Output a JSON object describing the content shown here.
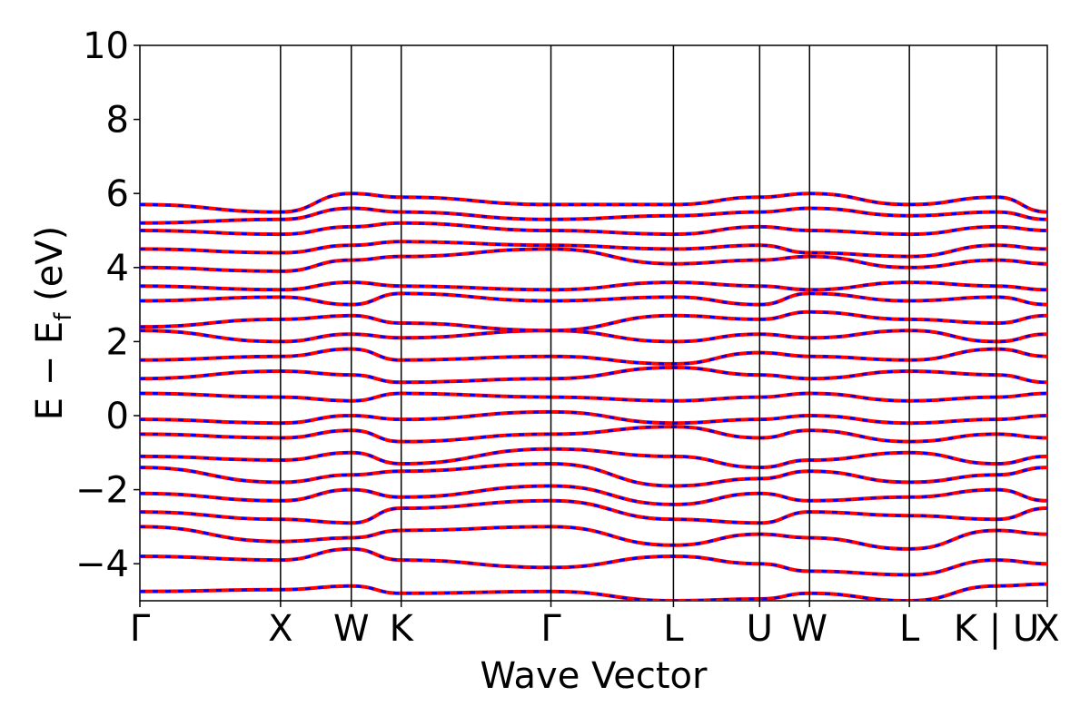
{
  "chart_data": {
    "type": "line",
    "title": "",
    "xlabel": "Wave Vector",
    "ylabel_parts": {
      "main": "E − E",
      "sub": "f",
      "unit": " (eV)"
    },
    "ylim": [
      -5,
      10
    ],
    "yticks": [
      10,
      8,
      6,
      4,
      2,
      0,
      -2,
      -4
    ],
    "ytick_labels": [
      "10",
      "8",
      "6",
      "4",
      "2",
      "0",
      "−2",
      "−4"
    ],
    "xlim": [
      0,
      1
    ],
    "kpath": [
      {
        "label": "Γ",
        "x": 0.0
      },
      {
        "label": "X",
        "x": 0.155
      },
      {
        "label": "W",
        "x": 0.233
      },
      {
        "label": "K",
        "x": 0.288
      },
      {
        "label": "Γ",
        "x": 0.453
      },
      {
        "label": "L",
        "x": 0.588
      },
      {
        "label": "U",
        "x": 0.683
      },
      {
        "label": "W",
        "x": 0.738
      },
      {
        "label": "L",
        "x": 0.848
      },
      {
        "label": "K | U",
        "x": 0.944
      },
      {
        "label": "X",
        "x": 1.0
      }
    ],
    "high_symmetry_lines": [
      0.155,
      0.233,
      0.288,
      0.453,
      0.588,
      0.683,
      0.738,
      0.848,
      0.944
    ],
    "series": [
      {
        "color": "#ff0000",
        "style": "solid"
      },
      {
        "color": "#0000ff",
        "style": "dashed"
      }
    ],
    "bands": [
      {
        "y": [
          -4.75,
          -4.7,
          -4.6,
          -4.8,
          -4.75,
          -5.0,
          -4.95,
          -4.8,
          -5.0,
          -4.6,
          -4.55
        ]
      },
      {
        "y": [
          -3.8,
          -3.9,
          -3.6,
          -3.9,
          -4.1,
          -3.8,
          -4.0,
          -4.2,
          -4.3,
          -3.9,
          -4.0
        ]
      },
      {
        "y": [
          -3.0,
          -3.4,
          -3.3,
          -3.1,
          -3.0,
          -3.5,
          -3.2,
          -3.3,
          -3.6,
          -3.1,
          -3.2
        ]
      },
      {
        "y": [
          -2.6,
          -2.8,
          -2.9,
          -2.5,
          -2.3,
          -2.8,
          -2.9,
          -2.6,
          -2.7,
          -2.8,
          -2.5
        ]
      },
      {
        "y": [
          -2.1,
          -2.3,
          -2.0,
          -2.2,
          -1.9,
          -2.4,
          -2.1,
          -2.3,
          -2.2,
          -2.0,
          -2.3
        ]
      },
      {
        "y": [
          -1.4,
          -1.8,
          -1.6,
          -1.5,
          -1.3,
          -1.9,
          -1.7,
          -1.5,
          -1.8,
          -1.6,
          -1.4
        ]
      },
      {
        "y": [
          -1.1,
          -1.2,
          -1.0,
          -1.3,
          -0.9,
          -1.1,
          -1.4,
          -1.2,
          -1.0,
          -1.3,
          -1.1
        ]
      },
      {
        "y": [
          -0.5,
          -0.6,
          -0.4,
          -0.7,
          -0.5,
          -0.3,
          -0.6,
          -0.4,
          -0.7,
          -0.5,
          -0.6
        ]
      },
      {
        "y": [
          -0.1,
          -0.2,
          0.0,
          -0.1,
          0.1,
          -0.2,
          -0.1,
          0.0,
          -0.2,
          -0.1,
          0.0
        ]
      },
      {
        "y": [
          0.6,
          0.5,
          0.4,
          0.6,
          0.5,
          0.4,
          0.5,
          0.6,
          0.4,
          0.5,
          0.6
        ]
      },
      {
        "y": [
          1.0,
          1.2,
          1.1,
          0.9,
          1.0,
          1.3,
          1.1,
          1.0,
          1.2,
          1.1,
          0.9
        ]
      },
      {
        "y": [
          1.5,
          1.6,
          1.8,
          1.5,
          1.6,
          1.4,
          1.7,
          1.6,
          1.5,
          1.8,
          1.6
        ]
      },
      {
        "y": [
          2.3,
          2.0,
          2.2,
          2.1,
          2.3,
          2.0,
          2.2,
          2.1,
          2.3,
          2.0,
          2.2
        ]
      },
      {
        "y": [
          2.4,
          2.6,
          2.7,
          2.5,
          2.3,
          2.7,
          2.6,
          2.8,
          2.6,
          2.5,
          2.7
        ]
      },
      {
        "y": [
          3.1,
          3.2,
          3.0,
          3.3,
          3.1,
          3.2,
          3.0,
          3.3,
          3.1,
          3.2,
          3.0
        ]
      },
      {
        "y": [
          3.5,
          3.4,
          3.6,
          3.5,
          3.4,
          3.6,
          3.5,
          3.4,
          3.6,
          3.5,
          3.4
        ]
      },
      {
        "y": [
          4.0,
          3.9,
          4.2,
          4.3,
          4.5,
          4.1,
          4.2,
          4.3,
          4.0,
          4.2,
          4.1
        ]
      },
      {
        "y": [
          4.5,
          4.4,
          4.6,
          4.7,
          4.6,
          4.5,
          4.6,
          4.4,
          4.3,
          4.6,
          4.5
        ]
      },
      {
        "y": [
          5.0,
          4.9,
          5.1,
          5.2,
          5.0,
          4.9,
          5.1,
          5.0,
          4.9,
          5.1,
          5.0
        ]
      },
      {
        "y": [
          5.2,
          5.3,
          5.6,
          5.5,
          5.3,
          5.4,
          5.5,
          5.6,
          5.4,
          5.5,
          5.3
        ]
      },
      {
        "y": [
          5.7,
          5.5,
          6.0,
          5.9,
          5.7,
          5.7,
          5.9,
          6.0,
          5.7,
          5.9,
          5.5
        ]
      }
    ]
  }
}
